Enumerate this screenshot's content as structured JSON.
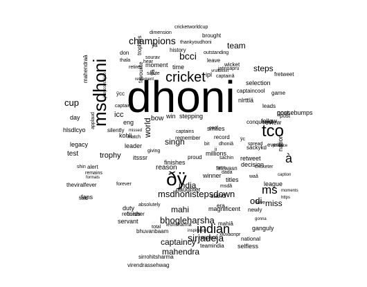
{
  "words": [
    "dhoni",
    "msdhoni",
    "tco",
    "cricket",
    "indian",
    "ðÿ",
    "champions",
    "bcci",
    "sirjadeja",
    "msdhonistepsdown",
    "bhogleharsha",
    "captaincy",
    "mahendra",
    "world",
    "cup",
    "à",
    "ms",
    "miss",
    "odi",
    "team",
    "india",
    "mahi",
    "singh",
    "steps",
    "icc",
    "trophy",
    "test",
    "fans",
    "legacy",
    "hlsdlcyo",
    "day",
    "eng",
    "kohli",
    "leader",
    "bow",
    "win",
    "stepping",
    "smiles",
    "follow",
    "review",
    "league",
    "nation",
    "decision",
    "winner",
    "titles",
    "stand",
    "magnificent",
    "newly",
    "ganguly",
    "selfless",
    "national",
    "teamindia",
    "respect",
    "sirrohitsharma",
    "virendrassehwag",
    "bhuvanbaam",
    "servant",
    "duty",
    "finisher",
    "absolutely",
    "records",
    "total",
    "leonsharma",
    "inspiration",
    "xluvaonpr",
    "mahiâ",
    "gonna",
    "caption",
    "moments",
    "https",
    "amp",
    "conquered",
    "record",
    "cool",
    "goosebumps",
    "post",
    "leads",
    "selection",
    "game",
    "captaincool",
    "nlrttlä",
    "captainâ",
    "jatinsapru",
    "wicket",
    "leave",
    "brought",
    "outstanding",
    "dimension",
    "cricketworldcup",
    "thankyoudhoni",
    "history",
    "sourav",
    "don",
    "thala",
    "hear",
    "retires",
    "trophies",
    "moment",
    "time",
    "salute",
    "favourite",
    "mahendraâ",
    "captainâ",
    "applaud",
    "forever",
    "theviralfever",
    "shin",
    "alert",
    "remains",
    "formats",
    "field",
    "reason",
    "finishes",
    "daughter",
    "msdâ",
    "dada",
    "waâ",
    "retweet",
    "events",
    "practice",
    "captains",
    "remember",
    "match",
    "missed",
    "silently",
    "love",
    "bit",
    "proud",
    "post",
    "fav",
    "wasn",
    "era",
    "spread",
    "ipl",
    "millions",
    "giving",
    "dhoniâ",
    "cricketer",
    "sachin",
    "ii",
    "itsssr",
    "vrsltbkxin",
    "retirement",
    "ÿa",
    "ÿâ",
    "ÿc",
    "sackykd",
    "fretweet",
    "ÿcc",
    "ÿcoÿcoÿcoÿco"
  ],
  "colors": {
    "text": "#000000",
    "background": "#ffffff"
  }
}
